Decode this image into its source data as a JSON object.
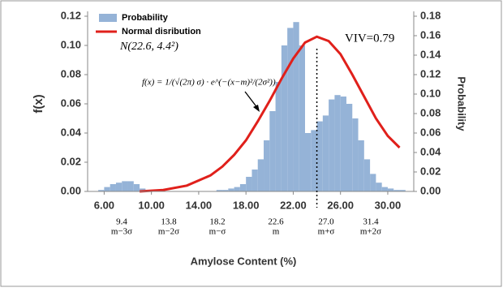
{
  "chart_data": {
    "type": "histogram",
    "x_label": "Amylose Content (%)",
    "y_label": "f(x)",
    "y2_label": "Probability",
    "xlim": [
      4.6,
      32.2
    ],
    "ylim": [
      0,
      0.12
    ],
    "y2lim": [
      0,
      0.18
    ],
    "xticks": [
      {
        "value": 6,
        "label": "6.00"
      },
      {
        "value": 10,
        "label": "10.00"
      },
      {
        "value": 14,
        "label": "14.00"
      },
      {
        "value": 18,
        "label": "18.00"
      },
      {
        "value": 22,
        "label": "22.00"
      },
      {
        "value": 26,
        "label": "26.00"
      },
      {
        "value": 30,
        "label": "30.00"
      }
    ],
    "yticks": [
      {
        "value": 0,
        "label": "0.00"
      },
      {
        "value": 0.02,
        "label": "0.02"
      },
      {
        "value": 0.04,
        "label": "0.04"
      },
      {
        "value": 0.06,
        "label": "0.06"
      },
      {
        "value": 0.08,
        "label": "0.08"
      },
      {
        "value": 0.1,
        "label": "0.10"
      },
      {
        "value": 0.12,
        "label": "0.12"
      }
    ],
    "y2ticks": [
      {
        "value": 0,
        "label": "0.00"
      },
      {
        "value": 0.02,
        "label": "0.02"
      },
      {
        "value": 0.04,
        "label": "0.04"
      },
      {
        "value": 0.06,
        "label": "0.06"
      },
      {
        "value": 0.08,
        "label": "0.08"
      },
      {
        "value": 0.1,
        "label": "0.10"
      },
      {
        "value": 0.12,
        "label": "0.12"
      },
      {
        "value": 0.14,
        "label": "0.14"
      },
      {
        "value": 0.16,
        "label": "0.16"
      },
      {
        "value": 0.18,
        "label": "0.18"
      }
    ],
    "legend": "upper left",
    "series": [
      {
        "name": "Probability",
        "kind": "histogram",
        "axis": "y2",
        "color": "#95b3d7",
        "bins": [
          5.5,
          6,
          6.5,
          7,
          7.5,
          8,
          8.5,
          9,
          9.5,
          10,
          10.5,
          11,
          11.5,
          12,
          12.5,
          13,
          13.5,
          14,
          14.5,
          15,
          15.5,
          16,
          16.5,
          17,
          17.5,
          18,
          18.5,
          19,
          19.5,
          20,
          20.5,
          21,
          21.5,
          22,
          22.5,
          23,
          23.5,
          24,
          24.5,
          25,
          25.5,
          26,
          26.5,
          27,
          27.5,
          28,
          28.5,
          29,
          29.5,
          30,
          30.5,
          31,
          31.5,
          32
        ],
        "values": [
          0.0015,
          0.0045,
          0.0075,
          0.009,
          0.0105,
          0.0105,
          0.0075,
          0.003,
          0,
          0,
          0,
          0,
          0,
          0,
          0,
          0,
          0,
          0,
          0,
          0,
          0.0015,
          0.0015,
          0.003,
          0.0045,
          0.0075,
          0.015,
          0.0225,
          0.033,
          0.0525,
          0.0825,
          0.1125,
          0.15,
          0.168,
          0.174,
          0.15,
          0.06,
          0.063,
          0.072,
          0.078,
          0.0945,
          0.099,
          0.0975,
          0.09,
          0.075,
          0.0525,
          0.033,
          0.018,
          0.009,
          0.0045,
          0.003,
          0.0015,
          0.0015,
          0
        ]
      },
      {
        "name": "Normal disribution",
        "kind": "line",
        "color": "#e0201b",
        "x": [
          9,
          11,
          13,
          15,
          16,
          17,
          18,
          19,
          20,
          21,
          22,
          23,
          24,
          25,
          26,
          27,
          28,
          29,
          30,
          31
        ],
        "values": [
          0,
          0.001,
          0.004,
          0.011,
          0.017,
          0.025,
          0.035,
          0.048,
          0.062,
          0.077,
          0.091,
          0.102,
          0.106,
          0.103,
          0.094,
          0.08,
          0.065,
          0.05,
          0.038,
          0.03
        ]
      }
    ],
    "reference_line": {
      "x": 24
    },
    "annotations": {
      "distribution": "N(22.6, 4.4²)",
      "viv": "VIV=0.79",
      "formula": "f(x) = 1/(√(2π) σ) · e^(−(x−m)²/(2σ²))"
    },
    "sigma_labels": [
      {
        "value": "9.4",
        "label": "m−3σ"
      },
      {
        "value": "13.8",
        "label": "m−2σ"
      },
      {
        "value": "18.2",
        "label": "m−σ"
      },
      {
        "value": "22.6",
        "label": "m"
      },
      {
        "value": "27.0",
        "label": "m+σ"
      },
      {
        "value": "31.4",
        "label": "m+2σ"
      }
    ]
  }
}
